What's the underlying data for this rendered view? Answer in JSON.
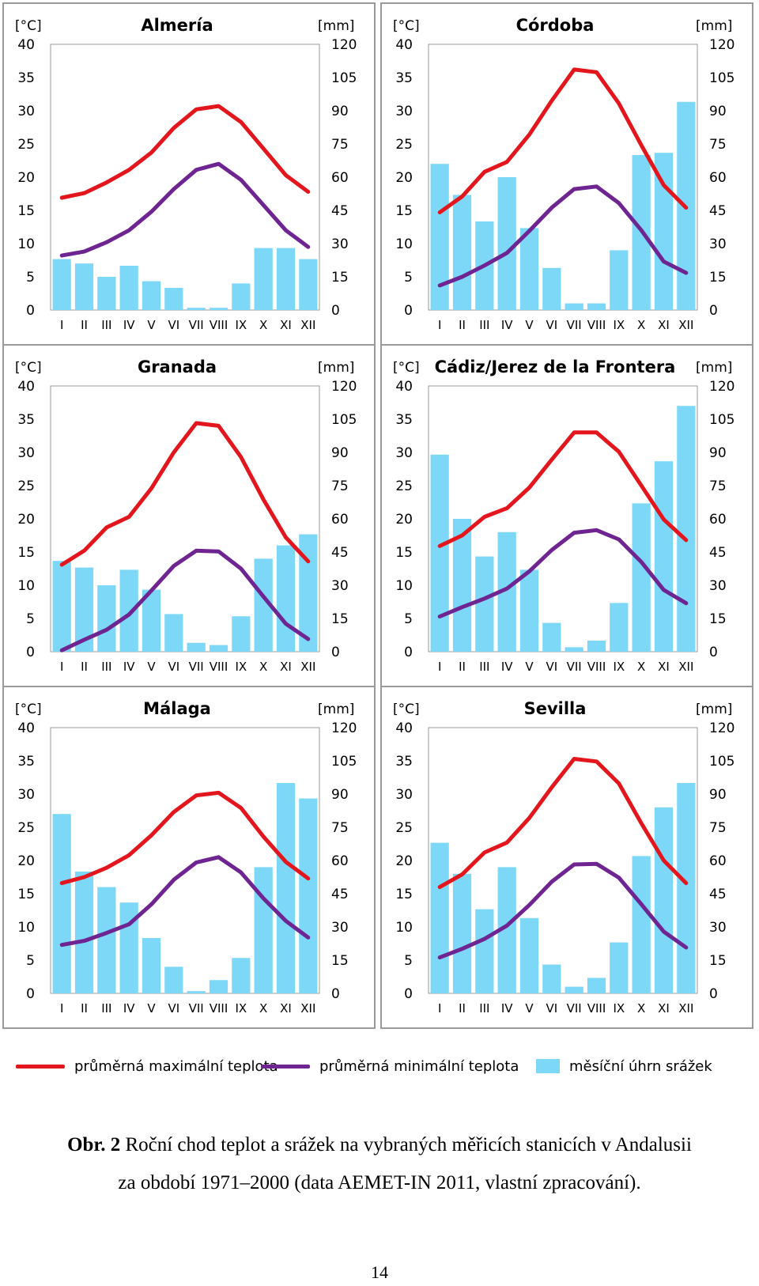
{
  "chart_data": [
    {
      "type": "climate",
      "title": "Almería",
      "left_axis_label": "[°C]",
      "right_axis_label": "[mm]",
      "categories": [
        "I",
        "II",
        "III",
        "IV",
        "V",
        "VI",
        "VII",
        "VIII",
        "IX",
        "X",
        "XI",
        "XII"
      ],
      "left_ticks": [
        "0",
        "5",
        "10",
        "15",
        "20",
        "25",
        "30",
        "35",
        "40"
      ],
      "right_ticks": [
        "0",
        "15",
        "30",
        "45",
        "60",
        "75",
        "90",
        "105",
        "120"
      ],
      "ylim_temp": [
        0,
        40
      ],
      "ylim_precip": [
        0,
        120
      ],
      "series": [
        {
          "name": "průměrná maximální teplota",
          "values": [
            16.9,
            17.6,
            19.2,
            21.1,
            23.7,
            27.4,
            30.2,
            30.7,
            28.3,
            24.3,
            20.3,
            17.8
          ]
        },
        {
          "name": "průměrná minimální teplota",
          "values": [
            8.2,
            8.8,
            10.2,
            12.0,
            14.8,
            18.2,
            21.1,
            22.0,
            19.6,
            15.8,
            12.0,
            9.5
          ]
        },
        {
          "name": "měsíční úhrn srážek",
          "values": [
            23,
            21,
            15,
            20,
            13,
            10,
            1,
            1,
            12,
            28,
            28,
            23
          ]
        }
      ]
    },
    {
      "type": "climate",
      "title": "Córdoba",
      "left_axis_label": "[°C]",
      "right_axis_label": "[mm]",
      "categories": [
        "I",
        "II",
        "III",
        "IV",
        "V",
        "VI",
        "VII",
        "VIII",
        "IX",
        "X",
        "XI",
        "XII"
      ],
      "left_ticks": [
        "0",
        "5",
        "10",
        "15",
        "20",
        "25",
        "30",
        "35",
        "40"
      ],
      "right_ticks": [
        "0",
        "15",
        "30",
        "45",
        "60",
        "75",
        "90",
        "105",
        "120"
      ],
      "ylim_temp": [
        0,
        40
      ],
      "ylim_precip": [
        0,
        120
      ],
      "series": [
        {
          "name": "průměrná maximální teplota",
          "values": [
            14.7,
            17.1,
            20.8,
            22.3,
            26.4,
            31.5,
            36.2,
            35.8,
            31.1,
            24.8,
            18.8,
            15.4
          ]
        },
        {
          "name": "průměrná minimální teplota",
          "values": [
            3.7,
            5.0,
            6.7,
            8.6,
            11.9,
            15.4,
            18.2,
            18.6,
            16.1,
            12.0,
            7.3,
            5.6
          ]
        },
        {
          "name": "měsíční úhrn srážek",
          "values": [
            66,
            52,
            40,
            60,
            37,
            19,
            3,
            3,
            27,
            70,
            71,
            94
          ]
        }
      ]
    },
    {
      "type": "climate",
      "title": "Granada",
      "left_axis_label": "[°C]",
      "right_axis_label": "[mm]",
      "categories": [
        "I",
        "II",
        "III",
        "IV",
        "V",
        "VI",
        "VII",
        "VIII",
        "IX",
        "X",
        "XI",
        "XII"
      ],
      "left_ticks": [
        "0",
        "5",
        "10",
        "15",
        "20",
        "25",
        "30",
        "35",
        "40"
      ],
      "right_ticks": [
        "0",
        "15",
        "30",
        "45",
        "60",
        "75",
        "90",
        "105",
        "120"
      ],
      "ylim_temp": [
        0,
        40
      ],
      "ylim_precip": [
        0,
        120
      ],
      "series": [
        {
          "name": "průměrná maximální teplota",
          "values": [
            13.1,
            15.2,
            18.7,
            20.3,
            24.6,
            30.0,
            34.4,
            34.0,
            29.3,
            22.9,
            17.2,
            13.6
          ]
        },
        {
          "name": "průměrná minimální teplota",
          "values": [
            0.2,
            1.8,
            3.3,
            5.6,
            9.2,
            12.9,
            15.2,
            15.1,
            12.5,
            8.3,
            4.2,
            1.9
          ]
        },
        {
          "name": "měsíční úhrn srážek",
          "values": [
            41,
            38,
            30,
            37,
            28,
            17,
            4,
            3,
            16,
            42,
            48,
            53
          ]
        }
      ]
    },
    {
      "type": "climate",
      "title": "Cádiz/Jerez de la Frontera",
      "left_axis_label": "[°C]",
      "right_axis_label": "[mm]",
      "categories": [
        "I",
        "II",
        "III",
        "IV",
        "V",
        "VI",
        "VII",
        "VIII",
        "IX",
        "X",
        "XI",
        "XII"
      ],
      "left_ticks": [
        "0",
        "5",
        "10",
        "15",
        "20",
        "25",
        "30",
        "35",
        "40"
      ],
      "right_ticks": [
        "0",
        "15",
        "30",
        "45",
        "60",
        "75",
        "90",
        "105",
        "120"
      ],
      "ylim_temp": [
        0,
        40
      ],
      "ylim_precip": [
        0,
        120
      ],
      "series": [
        {
          "name": "průměrná maximální teplota",
          "values": [
            15.9,
            17.5,
            20.3,
            21.6,
            24.7,
            28.9,
            33.0,
            33.0,
            30.1,
            25.0,
            19.9,
            16.8
          ]
        },
        {
          "name": "průměrná minimální teplota",
          "values": [
            5.3,
            6.7,
            8.0,
            9.5,
            12.1,
            15.3,
            17.9,
            18.3,
            16.9,
            13.5,
            9.3,
            7.3
          ]
        },
        {
          "name": "měsíční úhrn srážek",
          "values": [
            89,
            60,
            43,
            54,
            37,
            13,
            2,
            5,
            22,
            67,
            86,
            111
          ]
        }
      ]
    },
    {
      "type": "climate",
      "title": "Málaga",
      "left_axis_label": "[°C]",
      "right_axis_label": "[mm]",
      "categories": [
        "I",
        "II",
        "III",
        "IV",
        "V",
        "VI",
        "VII",
        "VIII",
        "IX",
        "X",
        "XI",
        "XII"
      ],
      "left_ticks": [
        "0",
        "5",
        "10",
        "15",
        "20",
        "25",
        "30",
        "35",
        "40"
      ],
      "right_ticks": [
        "0",
        "15",
        "30",
        "45",
        "60",
        "75",
        "90",
        "105",
        "120"
      ],
      "ylim_temp": [
        0,
        40
      ],
      "ylim_precip": [
        0,
        120
      ],
      "series": [
        {
          "name": "průměrná maximální teplota",
          "values": [
            16.6,
            17.5,
            18.9,
            20.8,
            23.8,
            27.3,
            29.8,
            30.2,
            27.9,
            23.6,
            19.8,
            17.3
          ]
        },
        {
          "name": "průměrná minimální teplota",
          "values": [
            7.3,
            7.9,
            9.1,
            10.4,
            13.4,
            17.1,
            19.7,
            20.5,
            18.2,
            14.3,
            10.9,
            8.4
          ]
        },
        {
          "name": "měsíční úhrn srážek",
          "values": [
            81,
            55,
            48,
            41,
            25,
            12,
            1,
            6,
            16,
            57,
            95,
            88
          ]
        }
      ]
    },
    {
      "type": "climate",
      "title": "Sevilla",
      "left_axis_label": "[°C]",
      "right_axis_label": "[mm]",
      "categories": [
        "I",
        "II",
        "III",
        "IV",
        "V",
        "VI",
        "VII",
        "VIII",
        "IX",
        "X",
        "XI",
        "XII"
      ],
      "left_ticks": [
        "0",
        "5",
        "10",
        "15",
        "20",
        "25",
        "30",
        "35",
        "40"
      ],
      "right_ticks": [
        "0",
        "15",
        "30",
        "45",
        "60",
        "75",
        "90",
        "105",
        "120"
      ],
      "ylim_temp": [
        0,
        40
      ],
      "ylim_precip": [
        0,
        120
      ],
      "series": [
        {
          "name": "průměrná maximální teplota",
          "values": [
            16.0,
            17.9,
            21.2,
            22.7,
            26.4,
            31.0,
            35.3,
            34.9,
            31.6,
            25.6,
            20.0,
            16.6
          ]
        },
        {
          "name": "průměrná minimální teplota",
          "values": [
            5.4,
            6.7,
            8.2,
            10.2,
            13.3,
            16.8,
            19.4,
            19.5,
            17.4,
            13.4,
            9.3,
            6.9
          ]
        },
        {
          "name": "měsíční úhrn srážek",
          "values": [
            68,
            54,
            38,
            57,
            34,
            13,
            3,
            7,
            23,
            62,
            84,
            95
          ]
        }
      ]
    }
  ],
  "legend": {
    "max_label": "průměrná maximální teplota",
    "min_label": "průměrná minimální teplota",
    "precip_label": "měsíční úhrn srážek"
  },
  "colors": {
    "max_temp": "#e3161d",
    "min_temp": "#6e2491",
    "precip": "#7dd8f8",
    "grid": "#9a9a9a",
    "border": "#9a9a9a"
  },
  "caption": {
    "prefix": "Obr. 2",
    "line1": " Roční chod teplot a srážek na vybraných měřicích stanicích v Andalusii",
    "line2": "za období 1971–2000 (data AEMET-IN 2011, vlastní zpracování)."
  },
  "page_number": "14"
}
